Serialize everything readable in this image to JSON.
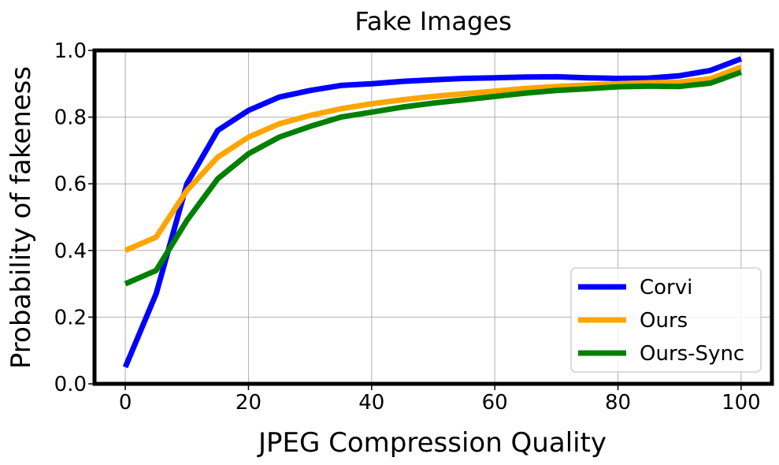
{
  "chart_data": {
    "type": "line",
    "title": "Fake Images",
    "xlabel": "JPEG Compression Quality",
    "ylabel": "Probability of fakeness",
    "xlim": [
      -5,
      105
    ],
    "ylim": [
      0,
      1.0
    ],
    "xticks": [
      0,
      20,
      40,
      60,
      80,
      100
    ],
    "yticks": [
      0.0,
      0.2,
      0.4,
      0.6,
      0.8,
      1.0
    ],
    "xtick_labels": [
      "0",
      "20",
      "40",
      "60",
      "80",
      "100"
    ],
    "ytick_labels": [
      "0.0",
      "0.2",
      "0.4",
      "0.6",
      "0.8",
      "1.0"
    ],
    "grid": true,
    "legend_position": "lower-right",
    "x": [
      0,
      5,
      10,
      15,
      20,
      25,
      30,
      35,
      40,
      45,
      50,
      55,
      60,
      65,
      70,
      75,
      80,
      85,
      90,
      95,
      100
    ],
    "series": [
      {
        "name": "Corvi",
        "color": "#0000ff",
        "values": [
          0.05,
          0.27,
          0.6,
          0.76,
          0.82,
          0.86,
          0.88,
          0.895,
          0.9,
          0.907,
          0.912,
          0.916,
          0.918,
          0.92,
          0.921,
          0.918,
          0.916,
          0.917,
          0.924,
          0.94,
          0.975
        ]
      },
      {
        "name": "Ours",
        "color": "#ffa500",
        "values": [
          0.4,
          0.44,
          0.58,
          0.68,
          0.74,
          0.78,
          0.805,
          0.825,
          0.84,
          0.852,
          0.862,
          0.87,
          0.878,
          0.886,
          0.892,
          0.896,
          0.9,
          0.903,
          0.905,
          0.915,
          0.95
        ]
      },
      {
        "name": "Ours-Sync",
        "color": "#008000",
        "values": [
          0.3,
          0.34,
          0.49,
          0.615,
          0.69,
          0.74,
          0.772,
          0.8,
          0.815,
          0.83,
          0.842,
          0.852,
          0.862,
          0.872,
          0.88,
          0.885,
          0.891,
          0.893,
          0.892,
          0.902,
          0.935
        ]
      }
    ]
  }
}
